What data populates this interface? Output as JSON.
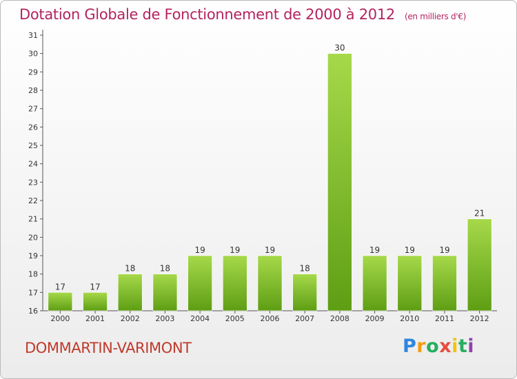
{
  "header": {
    "title": "Dotation Globale de Fonctionnement de 2000 à 2012",
    "subtitle": "(en milliers d'€)"
  },
  "footer": {
    "town": "DOMMARTIN-VARIMONT",
    "logo_letters": [
      "P",
      "r",
      "o",
      "x",
      "i",
      "t",
      "i"
    ],
    "logo_colors": [
      "#2e86de",
      "#f39c12",
      "#27ae60",
      "#e74c3c",
      "#f1c40f",
      "#27ae60",
      "#8e44ad"
    ]
  },
  "colors": {
    "bar_top": "#a6d94a",
    "bar_bottom": "#5e9e14",
    "accent": "#b4235e"
  },
  "chart_data": {
    "type": "bar",
    "categories": [
      "2000",
      "2001",
      "2002",
      "2003",
      "2004",
      "2005",
      "2006",
      "2007",
      "2008",
      "2009",
      "2010",
      "2011",
      "2012"
    ],
    "values": [
      17,
      17,
      18,
      18,
      19,
      19,
      19,
      18,
      30,
      19,
      19,
      19,
      21
    ],
    "title": "Dotation Globale de Fonctionnement de 2000 à 2012",
    "subtitle": "(en milliers d'€)",
    "xlabel": "",
    "ylabel": "",
    "ylim": [
      16,
      31
    ],
    "yticks": [
      16,
      17,
      18,
      19,
      20,
      21,
      22,
      23,
      24,
      25,
      26,
      27,
      28,
      29,
      30,
      31
    ],
    "grid": false,
    "legend": "none"
  }
}
